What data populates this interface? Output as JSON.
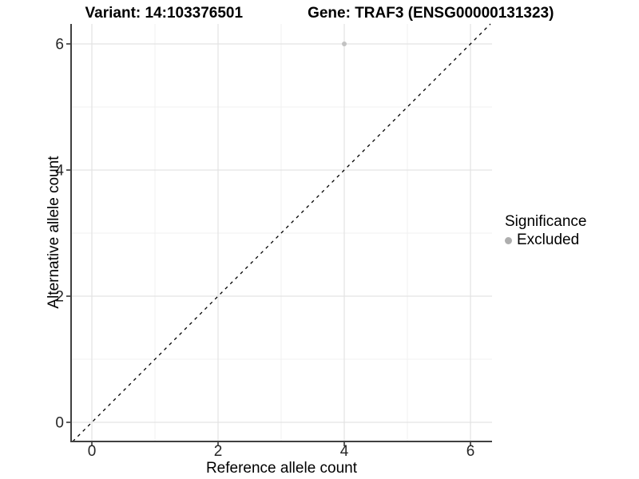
{
  "titles": {
    "variant": "Variant: 14:103376501",
    "gene": "Gene: TRAF3 (ENSG00000131323)"
  },
  "chart_data": {
    "type": "scatter",
    "title": "Variant: 14:103376501   Gene: TRAF3 (ENSG00000131323)",
    "xlabel": "Reference allele count",
    "ylabel": "Alternative allele count",
    "xlim": [
      -0.33,
      6.34
    ],
    "ylim": [
      -0.3,
      6.32
    ],
    "x_ticks": [
      0,
      2,
      4,
      6
    ],
    "y_ticks": [
      0,
      2,
      4,
      6
    ],
    "x_minor_ticks": [
      1,
      3,
      5
    ],
    "y_minor_ticks": [
      1,
      3,
      5
    ],
    "grid": true,
    "series": [
      {
        "name": "Excluded",
        "color": "#bcbcbc",
        "points": [
          {
            "x": 4,
            "y": 6
          }
        ]
      }
    ],
    "reference_line": {
      "type": "identity y=x",
      "style": "dashed",
      "color": "#000000"
    },
    "legend": {
      "title": "Significance",
      "position": "right",
      "entries": [
        {
          "label": "Excluded",
          "color": "#bcbcbc"
        }
      ]
    }
  },
  "colors": {
    "background": "#ffffff",
    "grid_major": "#e3e3e3",
    "grid_minor": "#f0f0f0",
    "axis_line": "#404040",
    "tick_mark": "#333333",
    "tick_label": "#262626",
    "point": "#c2c2c2",
    "legend_key": "#aeaeae",
    "dashed_line": "#000000"
  }
}
